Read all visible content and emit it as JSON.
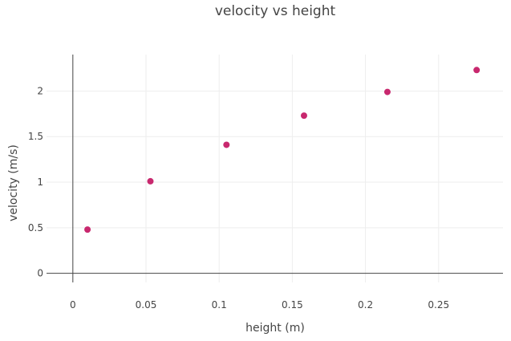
{
  "chart_data": {
    "type": "scatter",
    "title": "velocity vs height",
    "xlabel": "height (m)",
    "ylabel": "velocity (m/s)",
    "xlim": [
      -0.018,
      0.294
    ],
    "ylim": [
      -0.1,
      2.4
    ],
    "xticks": [
      0,
      0.05,
      0.1,
      0.15,
      0.2,
      0.25
    ],
    "xtick_labels": [
      "0",
      "0.05",
      "0.1",
      "0.15",
      "0.2",
      "0.25"
    ],
    "yticks": [
      0,
      0.5,
      1,
      1.5,
      2
    ],
    "ytick_labels": [
      "0",
      "0.5",
      "1",
      "1.5",
      "2"
    ],
    "grid": true,
    "marker_color": "#c8286e",
    "series": [
      {
        "x": [
          0.01,
          0.053,
          0.105,
          0.158,
          0.215,
          0.276
        ],
        "y": [
          0.48,
          1.01,
          1.41,
          1.73,
          1.99,
          2.23
        ]
      }
    ]
  }
}
